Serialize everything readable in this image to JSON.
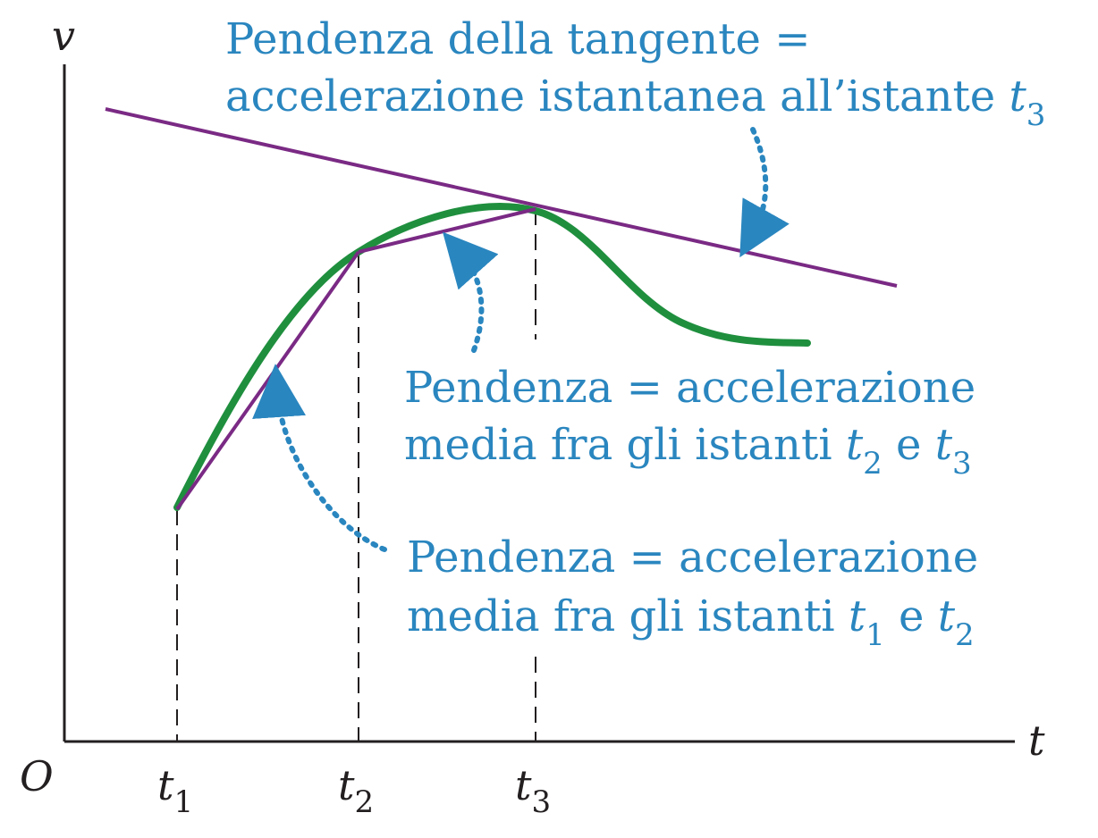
{
  "axes": {
    "y_label": "v",
    "x_label": "t",
    "origin_label": "O"
  },
  "ticks": [
    {
      "base": "t",
      "sub": "1"
    },
    {
      "base": "t",
      "sub": "2"
    },
    {
      "base": "t",
      "sub": "3"
    }
  ],
  "annotations": {
    "tangent": {
      "line1": "Pendenza della tangente =",
      "line2_text": "accelerazione istantanea all’istante ",
      "line2_var": "t",
      "line2_sub": "3"
    },
    "avg_23": {
      "line1": "Pendenza = accelerazione",
      "line2_text": "media fra gli istanti ",
      "var_a": "t",
      "sub_a": "2",
      "conj": " e ",
      "var_b": "t",
      "sub_b": "3"
    },
    "avg_12": {
      "line1": "Pendenza = accelerazione",
      "line2_text": "media fra gli istanti ",
      "var_a": "t",
      "sub_a": "1",
      "conj": " e ",
      "var_b": "t",
      "sub_b": "2"
    }
  },
  "colors": {
    "curve": "#1f8f3e",
    "lines": "#7a2a84",
    "annotation": "#2a86bf",
    "axes": "#231f20"
  }
}
